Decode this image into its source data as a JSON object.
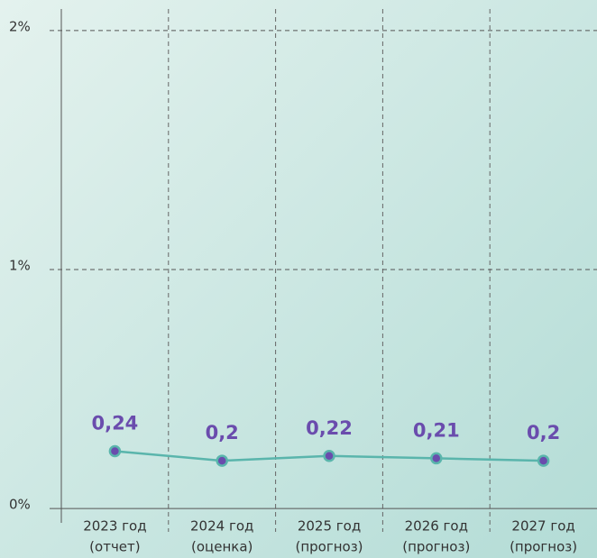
{
  "chart_data": {
    "type": "line",
    "categories": [
      [
        "2023 год",
        "(отчет)"
      ],
      [
        "2024 год",
        "(оценка)"
      ],
      [
        "2025 год",
        "(прогноз)"
      ],
      [
        "2026 год",
        "(прогноз)"
      ],
      [
        "2027 год",
        "(прогноз)"
      ]
    ],
    "series": [
      {
        "color": "#5ab5ac",
        "marker_color": "#6a4cad",
        "values": [
          0.24,
          0.2,
          0.22,
          0.21,
          0.2
        ],
        "value_labels": [
          "0,24",
          "0,2",
          "0,22",
          "0,21",
          "0,2"
        ]
      }
    ],
    "ylim": [
      -0.06,
      2.09
    ],
    "yticks": [
      {
        "value": 0,
        "label": "0%"
      },
      {
        "value": 1,
        "label": "1%"
      },
      {
        "value": 2,
        "label": "2%"
      }
    ],
    "grid": true
  }
}
